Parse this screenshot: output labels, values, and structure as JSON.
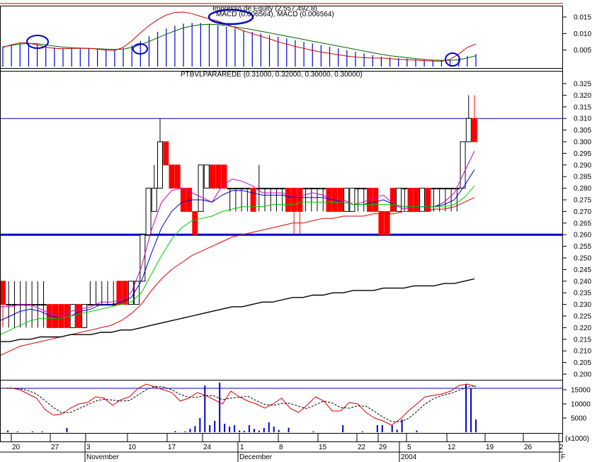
{
  "panels": {
    "macd": {
      "title": "Impresso de Equity (2,557,492.8)",
      "subtitle": "MACD (0.006564), MACD (0.006564)",
      "yticks": [
        "0.015",
        "0.010",
        "0.005"
      ]
    },
    "price": {
      "title": "PTBVLPARAREDE (0.31000, 0.32000, 0.30000, 0.30000)",
      "yticks": [
        "0.325",
        "0.320",
        "0.315",
        "0.310",
        "0.305",
        "0.300",
        "0.295",
        "0.290",
        "0.285",
        "0.280",
        "0.275",
        "0.270",
        "0.265",
        "0.260",
        "0.255",
        "0.250",
        "0.245",
        "0.240",
        "0.235",
        "0.230",
        "0.225",
        "0.220",
        "0.215",
        "0.210",
        "0.205",
        "0.200"
      ]
    },
    "stoch": {
      "yticks": [
        "15000",
        "10000",
        "5000"
      ],
      "unit": "x1000"
    }
  },
  "xaxis": {
    "days": [
      "20",
      "27",
      "3",
      "10",
      "17",
      "24",
      "1",
      "8",
      "15",
      "22",
      "29",
      "5",
      "12",
      "19",
      "26",
      "2"
    ],
    "months": [
      "November",
      "December",
      "2004",
      "F"
    ]
  },
  "colors": {
    "up": "#ffffff",
    "down": "#ff0000",
    "ma_magenta": "#cc00cc",
    "ma_blue": "#0000cc",
    "ma_green": "#00cc00",
    "ma_red": "#dd0000",
    "ma_black": "#000000",
    "hline": "#0000cc",
    "macd_bar": "#0000cc"
  },
  "chart_data": {
    "type": "candlestick",
    "title": "PTBVLPARAREDE (0.31000, 0.32000, 0.30000, 0.30000)",
    "ylim": [
      0.2,
      0.325
    ],
    "horizontal_levels": [
      0.31,
      0.26
    ],
    "candles": [
      {
        "o": 0.24,
        "h": 0.24,
        "l": 0.22,
        "c": 0.23
      },
      {
        "o": 0.23,
        "h": 0.24,
        "l": 0.22,
        "c": 0.23
      },
      {
        "o": 0.23,
        "h": 0.24,
        "l": 0.22,
        "c": 0.23
      },
      {
        "o": 0.23,
        "h": 0.24,
        "l": 0.22,
        "c": 0.23
      },
      {
        "o": 0.23,
        "h": 0.24,
        "l": 0.22,
        "c": 0.23
      },
      {
        "o": 0.23,
        "h": 0.24,
        "l": 0.22,
        "c": 0.23
      },
      {
        "o": 0.23,
        "h": 0.24,
        "l": 0.22,
        "c": 0.23
      },
      {
        "o": 0.23,
        "h": 0.24,
        "l": 0.22,
        "c": 0.23
      },
      {
        "o": 0.23,
        "h": 0.23,
        "l": 0.22,
        "c": 0.22
      },
      {
        "o": 0.23,
        "h": 0.23,
        "l": 0.22,
        "c": 0.22
      },
      {
        "o": 0.23,
        "h": 0.23,
        "l": 0.22,
        "c": 0.22
      },
      {
        "o": 0.23,
        "h": 0.23,
        "l": 0.22,
        "c": 0.22
      },
      {
        "o": 0.22,
        "h": 0.23,
        "l": 0.22,
        "c": 0.23
      },
      {
        "o": 0.23,
        "h": 0.23,
        "l": 0.22,
        "c": 0.22
      },
      {
        "o": 0.22,
        "h": 0.23,
        "l": 0.22,
        "c": 0.23
      },
      {
        "o": 0.23,
        "h": 0.24,
        "l": 0.23,
        "c": 0.23
      },
      {
        "o": 0.23,
        "h": 0.24,
        "l": 0.23,
        "c": 0.23
      },
      {
        "o": 0.23,
        "h": 0.24,
        "l": 0.23,
        "c": 0.23
      },
      {
        "o": 0.23,
        "h": 0.24,
        "l": 0.23,
        "c": 0.23
      },
      {
        "o": 0.23,
        "h": 0.24,
        "l": 0.23,
        "c": 0.23
      },
      {
        "o": 0.24,
        "h": 0.24,
        "l": 0.23,
        "c": 0.23
      },
      {
        "o": 0.24,
        "h": 0.24,
        "l": 0.23,
        "c": 0.23
      },
      {
        "o": 0.23,
        "h": 0.24,
        "l": 0.23,
        "c": 0.24
      },
      {
        "o": 0.23,
        "h": 0.24,
        "l": 0.23,
        "c": 0.24
      },
      {
        "o": 0.24,
        "h": 0.26,
        "l": 0.24,
        "c": 0.26
      },
      {
        "o": 0.26,
        "h": 0.28,
        "l": 0.26,
        "c": 0.28
      },
      {
        "o": 0.27,
        "h": 0.29,
        "l": 0.27,
        "c": 0.28
      },
      {
        "o": 0.28,
        "h": 0.31,
        "l": 0.28,
        "c": 0.3
      },
      {
        "o": 0.3,
        "h": 0.3,
        "l": 0.29,
        "c": 0.29
      },
      {
        "o": 0.29,
        "h": 0.29,
        "l": 0.28,
        "c": 0.28
      },
      {
        "o": 0.29,
        "h": 0.29,
        "l": 0.28,
        "c": 0.28
      },
      {
        "o": 0.28,
        "h": 0.28,
        "l": 0.27,
        "c": 0.27
      },
      {
        "o": 0.28,
        "h": 0.28,
        "l": 0.27,
        "c": 0.27
      },
      {
        "o": 0.27,
        "h": 0.27,
        "l": 0.26,
        "c": 0.26
      },
      {
        "o": 0.27,
        "h": 0.29,
        "l": 0.27,
        "c": 0.29
      },
      {
        "o": 0.28,
        "h": 0.29,
        "l": 0.28,
        "c": 0.29
      },
      {
        "o": 0.29,
        "h": 0.29,
        "l": 0.28,
        "c": 0.28
      },
      {
        "o": 0.29,
        "h": 0.29,
        "l": 0.28,
        "c": 0.28
      },
      {
        "o": 0.29,
        "h": 0.29,
        "l": 0.28,
        "c": 0.28
      },
      {
        "o": 0.28,
        "h": 0.28,
        "l": 0.27,
        "c": 0.28
      },
      {
        "o": 0.28,
        "h": 0.28,
        "l": 0.27,
        "c": 0.28
      },
      {
        "o": 0.28,
        "h": 0.28,
        "l": 0.27,
        "c": 0.28
      },
      {
        "o": 0.28,
        "h": 0.28,
        "l": 0.27,
        "c": 0.28
      },
      {
        "o": 0.28,
        "h": 0.28,
        "l": 0.27,
        "c": 0.27
      },
      {
        "o": 0.28,
        "h": 0.29,
        "l": 0.27,
        "c": 0.28
      },
      {
        "o": 0.28,
        "h": 0.28,
        "l": 0.27,
        "c": 0.28
      },
      {
        "o": 0.28,
        "h": 0.28,
        "l": 0.27,
        "c": 0.28
      },
      {
        "o": 0.28,
        "h": 0.28,
        "l": 0.27,
        "c": 0.28
      },
      {
        "o": 0.28,
        "h": 0.28,
        "l": 0.27,
        "c": 0.28
      },
      {
        "o": 0.28,
        "h": 0.28,
        "l": 0.27,
        "c": 0.27
      },
      {
        "o": 0.28,
        "h": 0.28,
        "l": 0.26,
        "c": 0.27
      },
      {
        "o": 0.28,
        "h": 0.28,
        "l": 0.26,
        "c": 0.27
      },
      {
        "o": 0.28,
        "h": 0.28,
        "l": 0.27,
        "c": 0.28
      },
      {
        "o": 0.28,
        "h": 0.28,
        "l": 0.27,
        "c": 0.28
      },
      {
        "o": 0.28,
        "h": 0.28,
        "l": 0.27,
        "c": 0.28
      },
      {
        "o": 0.28,
        "h": 0.28,
        "l": 0.27,
        "c": 0.28
      },
      {
        "o": 0.28,
        "h": 0.28,
        "l": 0.27,
        "c": 0.27
      },
      {
        "o": 0.28,
        "h": 0.28,
        "l": 0.27,
        "c": 0.27
      },
      {
        "o": 0.28,
        "h": 0.28,
        "l": 0.27,
        "c": 0.27
      },
      {
        "o": 0.27,
        "h": 0.28,
        "l": 0.27,
        "c": 0.28
      },
      {
        "o": 0.27,
        "h": 0.28,
        "l": 0.27,
        "c": 0.28
      },
      {
        "o": 0.28,
        "h": 0.28,
        "l": 0.27,
        "c": 0.28
      },
      {
        "o": 0.28,
        "h": 0.28,
        "l": 0.27,
        "c": 0.28
      },
      {
        "o": 0.28,
        "h": 0.28,
        "l": 0.27,
        "c": 0.27
      },
      {
        "o": 0.28,
        "h": 0.28,
        "l": 0.27,
        "c": 0.27
      },
      {
        "o": 0.27,
        "h": 0.27,
        "l": 0.26,
        "c": 0.26
      },
      {
        "o": 0.27,
        "h": 0.27,
        "l": 0.26,
        "c": 0.26
      },
      {
        "o": 0.28,
        "h": 0.28,
        "l": 0.27,
        "c": 0.27
      },
      {
        "o": 0.27,
        "h": 0.28,
        "l": 0.27,
        "c": 0.28
      },
      {
        "o": 0.28,
        "h": 0.28,
        "l": 0.27,
        "c": 0.28
      },
      {
        "o": 0.28,
        "h": 0.28,
        "l": 0.27,
        "c": 0.27
      },
      {
        "o": 0.28,
        "h": 0.28,
        "l": 0.27,
        "c": 0.27
      },
      {
        "o": 0.27,
        "h": 0.28,
        "l": 0.27,
        "c": 0.28
      },
      {
        "o": 0.28,
        "h": 0.28,
        "l": 0.27,
        "c": 0.27
      },
      {
        "o": 0.28,
        "h": 0.28,
        "l": 0.27,
        "c": 0.28
      },
      {
        "o": 0.28,
        "h": 0.28,
        "l": 0.27,
        "c": 0.28
      },
      {
        "o": 0.28,
        "h": 0.28,
        "l": 0.27,
        "c": 0.28
      },
      {
        "o": 0.28,
        "h": 0.28,
        "l": 0.27,
        "c": 0.28
      },
      {
        "o": 0.28,
        "h": 0.28,
        "l": 0.27,
        "c": 0.28
      },
      {
        "o": 0.28,
        "h": 0.3,
        "l": 0.28,
        "c": 0.3
      },
      {
        "o": 0.3,
        "h": 0.32,
        "l": 0.3,
        "c": 0.31
      },
      {
        "o": 0.31,
        "h": 0.32,
        "l": 0.3,
        "c": 0.3
      }
    ],
    "moving_averages": [
      {
        "color": "magenta",
        "values": [
          0.229,
          0.229,
          0.23,
          0.23,
          0.228,
          0.226,
          0.225,
          0.227,
          0.228,
          0.229,
          0.231,
          0.231,
          0.232,
          0.235,
          0.246,
          0.262,
          0.274,
          0.279,
          0.28,
          0.278,
          0.276,
          0.274,
          0.281,
          0.284,
          0.283,
          0.281,
          0.278,
          0.278,
          0.278,
          0.276,
          0.277,
          0.278,
          0.277,
          0.275,
          0.275,
          0.273,
          0.274,
          0.276,
          0.277,
          0.273,
          0.271,
          0.272,
          0.272,
          0.272,
          0.274,
          0.278,
          0.287,
          0.296
        ]
      },
      {
        "color": "blue",
        "values": [
          0.223,
          0.225,
          0.227,
          0.228,
          0.227,
          0.225,
          0.224,
          0.225,
          0.227,
          0.228,
          0.23,
          0.23,
          0.231,
          0.233,
          0.24,
          0.252,
          0.263,
          0.27,
          0.274,
          0.275,
          0.275,
          0.274,
          0.277,
          0.279,
          0.279,
          0.278,
          0.277,
          0.277,
          0.277,
          0.276,
          0.276,
          0.276,
          0.276,
          0.275,
          0.274,
          0.273,
          0.273,
          0.274,
          0.275,
          0.273,
          0.272,
          0.272,
          0.272,
          0.272,
          0.273,
          0.275,
          0.281,
          0.288
        ]
      },
      {
        "color": "green",
        "values": [
          0.217,
          0.219,
          0.221,
          0.223,
          0.224,
          0.224,
          0.224,
          0.225,
          0.226,
          0.227,
          0.228,
          0.229,
          0.23,
          0.231,
          0.235,
          0.243,
          0.251,
          0.258,
          0.263,
          0.266,
          0.267,
          0.268,
          0.27,
          0.271,
          0.272,
          0.272,
          0.272,
          0.273,
          0.273,
          0.273,
          0.274,
          0.274,
          0.274,
          0.274,
          0.274,
          0.273,
          0.273,
          0.273,
          0.273,
          0.273,
          0.272,
          0.272,
          0.272,
          0.272,
          0.272,
          0.273,
          0.276,
          0.281
        ]
      },
      {
        "color": "red",
        "values": [
          0.208,
          0.21,
          0.212,
          0.213,
          0.214,
          0.215,
          0.216,
          0.217,
          0.218,
          0.219,
          0.22,
          0.221,
          0.223,
          0.226,
          0.23,
          0.236,
          0.241,
          0.245,
          0.248,
          0.251,
          0.253,
          0.255,
          0.257,
          0.259,
          0.26,
          0.261,
          0.262,
          0.263,
          0.264,
          0.265,
          0.265,
          0.266,
          0.267,
          0.267,
          0.268,
          0.268,
          0.268,
          0.269,
          0.269,
          0.269,
          0.27,
          0.27,
          0.27,
          0.271,
          0.271,
          0.272,
          0.274,
          0.276
        ]
      },
      {
        "color": "black",
        "values": [
          0.214,
          0.214,
          0.215,
          0.215,
          0.216,
          0.216,
          0.216,
          0.217,
          0.217,
          0.217,
          0.218,
          0.218,
          0.219,
          0.219,
          0.22,
          0.221,
          0.222,
          0.223,
          0.224,
          0.225,
          0.226,
          0.227,
          0.228,
          0.229,
          0.229,
          0.23,
          0.231,
          0.231,
          0.232,
          0.233,
          0.233,
          0.234,
          0.234,
          0.235,
          0.235,
          0.236,
          0.236,
          0.236,
          0.237,
          0.237,
          0.237,
          0.238,
          0.238,
          0.238,
          0.239,
          0.239,
          0.24,
          0.241
        ]
      }
    ],
    "macd": {
      "ylim": [
        0,
        0.018
      ],
      "bars": [
        0.006,
        0.0065,
        0.007,
        0.007,
        0.0068,
        0.0062,
        0.0058,
        0.0056,
        0.0056,
        0.0055,
        0.0055,
        0.0054,
        0.0052,
        0.0052,
        0.0055,
        0.0065,
        0.0078,
        0.0092,
        0.0105,
        0.0115,
        0.0124,
        0.013,
        0.0132,
        0.0132,
        0.013,
        0.0125,
        0.012,
        0.0115,
        0.011,
        0.0105,
        0.01,
        0.0095,
        0.009,
        0.0085,
        0.008,
        0.0075,
        0.007,
        0.0065,
        0.006,
        0.0055,
        0.005,
        0.0045,
        0.004,
        0.0035,
        0.003,
        0.0028,
        0.0026,
        0.0024,
        0.0022,
        0.002,
        0.0019,
        0.0019,
        0.002,
        0.0024,
        0.0032,
        0.0038
      ],
      "line_green": [
        0.006,
        0.0064,
        0.0068,
        0.007,
        0.0069,
        0.0066,
        0.0062,
        0.0059,
        0.0057,
        0.0056,
        0.0055,
        0.0054,
        0.0053,
        0.0052,
        0.0053,
        0.0058,
        0.0066,
        0.0076,
        0.0087,
        0.0098,
        0.0108,
        0.0117,
        0.0123,
        0.0127,
        0.0128,
        0.0127,
        0.0124,
        0.012,
        0.0116,
        0.0112,
        0.0107,
        0.0102,
        0.0097,
        0.0092,
        0.0087,
        0.0082,
        0.0077,
        0.0072,
        0.0067,
        0.0062,
        0.0057,
        0.0052,
        0.0047,
        0.0042,
        0.0037,
        0.0033,
        0.003,
        0.0027,
        0.0024,
        0.0022,
        0.002,
        0.0019,
        0.0019,
        0.0021,
        0.0026,
        0.0033
      ],
      "line_red": [
        0.0058,
        0.0066,
        0.0072,
        0.0071,
        0.0066,
        0.0059,
        0.0055,
        0.0054,
        0.0055,
        0.0055,
        0.0055,
        0.0053,
        0.005,
        0.0049,
        0.0058,
        0.0078,
        0.0102,
        0.0124,
        0.0142,
        0.0156,
        0.0164,
        0.0165,
        0.016,
        0.0152,
        0.0144,
        0.0138,
        0.0128,
        0.0118,
        0.0108,
        0.01,
        0.0092,
        0.0084,
        0.0075,
        0.0068,
        0.0061,
        0.0055,
        0.0049,
        0.0044,
        0.004,
        0.0036,
        0.0032,
        0.0029,
        0.0027,
        0.0026,
        0.0026,
        0.0024,
        0.0022,
        0.0021,
        0.002,
        0.0018,
        0.0017,
        0.0016,
        0.0022,
        0.0038,
        0.0058,
        0.0068
      ]
    },
    "volume": {
      "ylim": [
        0,
        18000
      ],
      "reference_level": 15500,
      "bars": [
        0,
        600,
        0,
        300,
        0,
        0,
        300,
        0,
        300,
        0,
        0,
        0,
        0,
        1500,
        0,
        0,
        0,
        0,
        0,
        0,
        0,
        0,
        0,
        0,
        0,
        0,
        0,
        0,
        0,
        0,
        0,
        0,
        0,
        0,
        0,
        400,
        0,
        300,
        1200,
        2200,
        5000,
        16500,
        2500,
        4000,
        17500,
        3000,
        2000,
        2500,
        600,
        500,
        2500,
        1200,
        600,
        1500,
        3500,
        2000,
        800,
        0,
        1600,
        0,
        0,
        0,
        0,
        300,
        0,
        0,
        0,
        0,
        0,
        2500,
        0,
        0,
        0,
        300,
        0,
        0,
        2500,
        2500,
        0,
        2500,
        900,
        4500,
        0,
        0,
        600,
        0,
        0,
        0,
        0,
        0,
        0,
        0,
        0,
        0,
        17000,
        15500,
        4500
      ],
      "k_line": [
        15500,
        15600,
        15000,
        13500,
        12000,
        8000,
        6000,
        6500,
        8500,
        10000,
        10500,
        12500,
        12000,
        9500,
        11500,
        12500,
        15500,
        17000,
        16000,
        15000,
        14000,
        11000,
        12000,
        14000,
        13000,
        11500,
        10000,
        14500,
        12500,
        11000,
        10000,
        8500,
        10000,
        12000,
        8500,
        7000,
        9500,
        12500,
        11000,
        7500,
        7500,
        10500,
        10000,
        7000,
        5000,
        4000,
        2500,
        4500,
        7500,
        10000,
        12500,
        13000,
        13500,
        14500,
        16500,
        17000,
        16000
      ]
    }
  }
}
